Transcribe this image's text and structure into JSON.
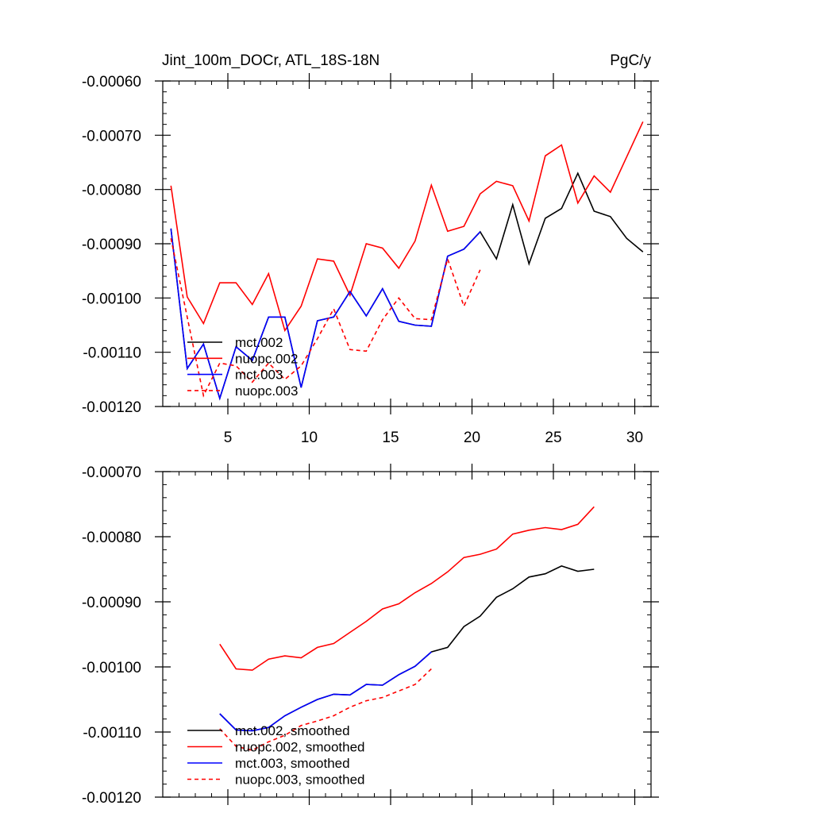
{
  "chart_data": [
    {
      "type": "line",
      "title": "Jint_100m_DOCr, ATL_18S-18N",
      "units": "PgC/y",
      "xlabel": "",
      "ylabel": "",
      "xlim": [
        1,
        31
      ],
      "ylim": [
        -0.0012,
        -0.0006
      ],
      "x_ticks": [
        5,
        10,
        15,
        20,
        25,
        30
      ],
      "x_tick_labels": [
        "5",
        "10",
        "15",
        "20",
        "25",
        "30"
      ],
      "y_ticks": [
        -0.0006,
        -0.0007,
        -0.0008,
        -0.0009,
        -0.001,
        -0.0011,
        -0.0012
      ],
      "y_tick_labels": [
        "-0.00060",
        "-0.00070",
        "-0.00080",
        "-0.00090",
        "-0.00100",
        "-0.00110",
        "-0.00120"
      ],
      "legend_position": "bottom-left",
      "series": [
        {
          "name": "mct.002",
          "color": "#000000",
          "dash": "solid",
          "x": [
            1.5,
            2.5,
            3.5,
            4.5,
            5.5,
            6.5,
            7.5,
            8.5,
            9.5,
            10.5,
            11.5,
            12.5,
            13.5,
            14.5,
            15.5,
            16.5,
            17.5,
            18.5,
            19.5,
            20.5,
            21.5,
            22.5,
            23.5,
            24.5,
            25.5,
            26.5,
            27.5,
            28.5,
            29.5,
            30.5
          ],
          "values": [
            -0.000872,
            -0.00113,
            -0.001085,
            -0.001185,
            -0.00109,
            -0.001115,
            -0.001035,
            -0.001035,
            -0.001165,
            -0.001042,
            -0.001035,
            -0.000988,
            -0.001033,
            -0.000983,
            -0.001043,
            -0.00105,
            -0.001052,
            -0.000923,
            -0.00091,
            -0.000878,
            -0.000928,
            -0.000828,
            -0.000937,
            -0.000853,
            -0.000835,
            -0.00077,
            -0.00084,
            -0.00085,
            -0.00089,
            -0.000915
          ]
        },
        {
          "name": "nuopc.002",
          "color": "#ff0000",
          "dash": "solid",
          "x": [
            1.5,
            2.5,
            3.5,
            4.5,
            5.5,
            6.5,
            7.5,
            8.5,
            9.5,
            10.5,
            11.5,
            12.5,
            13.5,
            14.5,
            15.5,
            16.5,
            17.5,
            18.5,
            19.5,
            20.5,
            21.5,
            22.5,
            23.5,
            24.5,
            25.5,
            26.5,
            27.5,
            28.5,
            29.5,
            30.5
          ],
          "values": [
            -0.000793,
            -0.000998,
            -0.001047,
            -0.000972,
            -0.000972,
            -0.001012,
            -0.000955,
            -0.00106,
            -0.001015,
            -0.000928,
            -0.000932,
            -0.000995,
            -0.0009,
            -0.000908,
            -0.000945,
            -0.000895,
            -0.000792,
            -0.000877,
            -0.000868,
            -0.000808,
            -0.000785,
            -0.000793,
            -0.000858,
            -0.000738,
            -0.000718,
            -0.000825,
            -0.000775,
            -0.000805,
            -0.00074,
            -0.000675
          ]
        },
        {
          "name": "mct.003",
          "color": "#0000ff",
          "dash": "solid",
          "x": [
            1.5,
            2.5,
            3.5,
            4.5,
            5.5,
            6.5,
            7.5,
            8.5,
            9.5,
            10.5,
            11.5,
            12.5,
            13.5,
            14.5,
            15.5,
            16.5,
            17.5,
            18.5,
            19.5,
            20.5
          ],
          "values": [
            -0.000872,
            -0.00113,
            -0.001085,
            -0.001185,
            -0.00109,
            -0.001115,
            -0.001035,
            -0.001035,
            -0.001165,
            -0.001042,
            -0.001035,
            -0.000988,
            -0.001033,
            -0.000983,
            -0.001043,
            -0.00105,
            -0.001052,
            -0.000923,
            -0.00091,
            -0.000878
          ]
        },
        {
          "name": "nuopc.003",
          "color": "#ff0000",
          "dash": "dashed",
          "x": [
            1.5,
            2.5,
            3.5,
            4.5,
            5.5,
            6.5,
            7.5,
            8.5,
            9.5,
            10.5,
            11.5,
            12.5,
            13.5,
            14.5,
            15.5,
            16.5,
            17.5,
            18.5,
            19.5,
            20.5
          ],
          "values": [
            -0.00089,
            -0.001035,
            -0.00118,
            -0.00112,
            -0.001125,
            -0.001155,
            -0.00112,
            -0.00115,
            -0.001125,
            -0.001075,
            -0.00102,
            -0.001095,
            -0.001098,
            -0.00104,
            -0.001,
            -0.001038,
            -0.00104,
            -0.000928,
            -0.001015,
            -0.000948
          ]
        }
      ]
    },
    {
      "type": "line",
      "title": "",
      "xlabel": "",
      "ylabel": "",
      "xlim": [
        1,
        31
      ],
      "ylim": [
        -0.0012,
        -0.0007
      ],
      "x_ticks": [
        5,
        10,
        15,
        20,
        25,
        30
      ],
      "x_tick_labels": [],
      "y_ticks": [
        -0.0007,
        -0.0008,
        -0.0009,
        -0.001,
        -0.0011,
        -0.0012
      ],
      "y_tick_labels": [
        "-0.00070",
        "-0.00080",
        "-0.00090",
        "-0.00100",
        "-0.00110",
        "-0.00120"
      ],
      "legend_position": "bottom-left",
      "series": [
        {
          "name": "mct.002, smoothed",
          "color": "#000000",
          "dash": "solid",
          "x": [
            4.5,
            5.5,
            6.5,
            7.5,
            8.5,
            9.5,
            10.5,
            11.5,
            12.5,
            13.5,
            14.5,
            15.5,
            16.5,
            17.5,
            18.5,
            19.5,
            20.5,
            21.5,
            22.5,
            23.5,
            24.5,
            25.5,
            26.5,
            27.5
          ],
          "values": [
            -0.001072,
            -0.001097,
            -0.001098,
            -0.001093,
            -0.001075,
            -0.001062,
            -0.00105,
            -0.001042,
            -0.001043,
            -0.001027,
            -0.001028,
            -0.001012,
            -0.000999,
            -0.000977,
            -0.00097,
            -0.000938,
            -0.000922,
            -0.000893,
            -0.00088,
            -0.000862,
            -0.000857,
            -0.000845,
            -0.000853,
            -0.00085
          ]
        },
        {
          "name": "nuopc.002, smoothed",
          "color": "#ff0000",
          "dash": "solid",
          "x": [
            4.5,
            5.5,
            6.5,
            7.5,
            8.5,
            9.5,
            10.5,
            11.5,
            12.5,
            13.5,
            14.5,
            15.5,
            16.5,
            17.5,
            18.5,
            19.5,
            20.5,
            21.5,
            22.5,
            23.5,
            24.5,
            25.5,
            26.5,
            27.5
          ],
          "values": [
            -0.000965,
            -0.001003,
            -0.001005,
            -0.000988,
            -0.000983,
            -0.000986,
            -0.00097,
            -0.000964,
            -0.000947,
            -0.00093,
            -0.000911,
            -0.000903,
            -0.000886,
            -0.000872,
            -0.000854,
            -0.000832,
            -0.000827,
            -0.000819,
            -0.000796,
            -0.00079,
            -0.000786,
            -0.000789,
            -0.000781,
            -0.000754
          ]
        },
        {
          "name": "mct.003, smoothed",
          "color": "#0000ff",
          "dash": "solid",
          "x": [
            4.5,
            5.5,
            6.5,
            7.5,
            8.5,
            9.5,
            10.5,
            11.5,
            12.5,
            13.5,
            14.5,
            15.5,
            16.5,
            17.5
          ],
          "values": [
            -0.001072,
            -0.001097,
            -0.001098,
            -0.001093,
            -0.001075,
            -0.001062,
            -0.00105,
            -0.001042,
            -0.001043,
            -0.001027,
            -0.001028,
            -0.001012,
            -0.000999,
            -0.000977
          ]
        },
        {
          "name": "nuopc.003, smoothed",
          "color": "#ff0000",
          "dash": "dashed",
          "x": [
            4.5,
            5.5,
            6.5,
            7.5,
            8.5,
            9.5,
            10.5,
            11.5,
            12.5,
            13.5,
            14.5,
            15.5,
            16.5,
            17.5
          ],
          "values": [
            -0.001095,
            -0.001122,
            -0.001128,
            -0.001115,
            -0.001105,
            -0.00109,
            -0.001083,
            -0.001075,
            -0.001062,
            -0.001052,
            -0.001047,
            -0.001037,
            -0.001027,
            -0.001003
          ]
        }
      ]
    }
  ]
}
